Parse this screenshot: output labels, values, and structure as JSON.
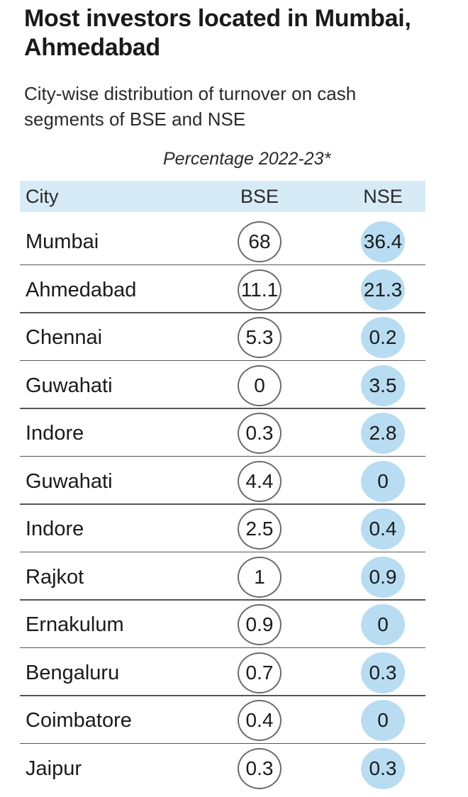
{
  "title": "Most investors located in Mumbai, Ahmedabad",
  "subtitle": "City-wise distribution of turnover on cash segments of BSE and NSE",
  "period": "Percentage 2022-23*",
  "columns": {
    "city": "City",
    "bse": "BSE",
    "nse": "NSE"
  },
  "colors": {
    "header_bg": "#d7ebf7",
    "nse_bubble": "#b8dcf1",
    "bse_ring": "#6b6b6b"
  },
  "chart_data": {
    "type": "table",
    "title": "Most investors located in Mumbai, Ahmedabad",
    "subtitle": "City-wise distribution of turnover on cash segments of BSE and NSE",
    "unit_note": "Percentage 2022-23*",
    "columns": [
      "City",
      "BSE",
      "NSE"
    ],
    "rows": [
      {
        "city": "Mumbai",
        "bse": "68",
        "nse": "36.4"
      },
      {
        "city": "Ahmedabad",
        "bse": "11.1",
        "nse": "21.3"
      },
      {
        "city": "Chennai",
        "bse": "5.3",
        "nse": "0.2"
      },
      {
        "city": "Guwahati",
        "bse": "0",
        "nse": "3.5"
      },
      {
        "city": "Indore",
        "bse": "0.3",
        "nse": "2.8"
      },
      {
        "city": "Guwahati",
        "bse": "4.4",
        "nse": "0"
      },
      {
        "city": "Indore",
        "bse": "2.5",
        "nse": "0.4"
      },
      {
        "city": "Rajkot",
        "bse": "1",
        "nse": "0.9"
      },
      {
        "city": "Ernakulum",
        "bse": "0.9",
        "nse": "0"
      },
      {
        "city": "Bengaluru",
        "bse": "0.7",
        "nse": "0.3"
      },
      {
        "city": "Coimbatore",
        "bse": "0.4",
        "nse": "0"
      },
      {
        "city": "Jaipur",
        "bse": "0.3",
        "nse": "0.3"
      }
    ]
  }
}
